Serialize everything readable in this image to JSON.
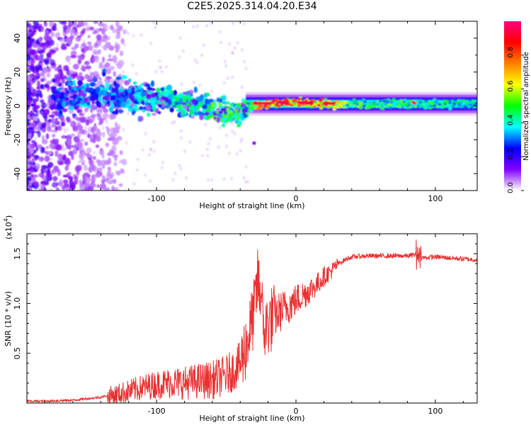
{
  "figure_title": "C2E5.2025.314.04.20.E34",
  "chart_data": [
    {
      "type": "heatmap",
      "title": "C2E5.2025.314.04.20.E34",
      "xlabel": "Height of straight line (km)",
      "ylabel": "Frequency (Hz)",
      "xlim": [
        -193,
        130
      ],
      "ylim": [
        -50,
        50
      ],
      "x_ticks": [
        -100,
        0,
        100
      ],
      "y_ticks": [
        -40,
        -20,
        0,
        20,
        40
      ],
      "colorbar": {
        "label": "Normalized spectral amplitude",
        "range": [
          0,
          1
        ],
        "ticks": [
          0.0,
          0.2,
          0.4,
          0.6,
          0.8
        ],
        "tick_labels": [
          "0.0",
          "0.2",
          "0.4",
          "0.6",
          "0.8"
        ],
        "colors": [
          "#ffffff",
          "#8000ff",
          "#0000ff",
          "#00ffff",
          "#00ff00",
          "#ffff00",
          "#ff8000",
          "#ff0000",
          "#ff0080"
        ]
      },
      "ridge": {
        "description_x": [
          -193,
          -170,
          -150,
          -120,
          -100,
          -80,
          -60,
          -45,
          -38,
          -30,
          -20,
          -10,
          0,
          20,
          40,
          80,
          130
        ],
        "center_freq_hz": [
          5,
          4,
          6,
          6,
          4,
          2,
          -2,
          -5,
          -3,
          0,
          1,
          2,
          2,
          1,
          1,
          1,
          1
        ],
        "amplitude": [
          0.1,
          0.3,
          0.35,
          0.35,
          0.4,
          0.45,
          0.5,
          0.5,
          0.45,
          0.6,
          0.9,
          0.9,
          0.85,
          0.8,
          0.5,
          0.5,
          0.45
        ]
      }
    },
    {
      "type": "line",
      "xlabel": "Height of straight line (km)",
      "ylabel": "SNR (10 * v/v)",
      "y_multiplier_label": "(x10",
      "y_multiplier_exp": "4",
      "xlim": [
        -193,
        130
      ],
      "ylim": [
        0,
        1.7
      ],
      "x_ticks": [
        -100,
        0,
        100
      ],
      "y_ticks": [
        0.5,
        1.0,
        1.5
      ],
      "y_tick_labels": [
        "0.5",
        "1.0",
        "1.5"
      ],
      "color": "#e83030",
      "series": [
        {
          "name": "SNR",
          "x": [
            -193,
            -180,
            -160,
            -140,
            -130,
            -120,
            -110,
            -100,
            -90,
            -80,
            -70,
            -60,
            -50,
            -45,
            -40,
            -35,
            -30,
            -27,
            -25,
            -22,
            -20,
            -15,
            -10,
            -5,
            0,
            5,
            10,
            15,
            20,
            25,
            30,
            35,
            40,
            50,
            60,
            70,
            80,
            85,
            88,
            90,
            100,
            110,
            120,
            130
          ],
          "y": [
            0.02,
            0.02,
            0.03,
            0.06,
            0.09,
            0.13,
            0.17,
            0.2,
            0.22,
            0.22,
            0.24,
            0.25,
            0.3,
            0.35,
            0.42,
            0.65,
            0.95,
            1.3,
            0.9,
            0.75,
            0.85,
            0.9,
            0.95,
            1.0,
            1.05,
            1.1,
            1.15,
            1.2,
            1.28,
            1.33,
            1.4,
            1.44,
            1.47,
            1.48,
            1.48,
            1.48,
            1.48,
            1.49,
            1.5,
            1.46,
            1.47,
            1.46,
            1.45,
            1.44
          ]
        }
      ]
    }
  ]
}
